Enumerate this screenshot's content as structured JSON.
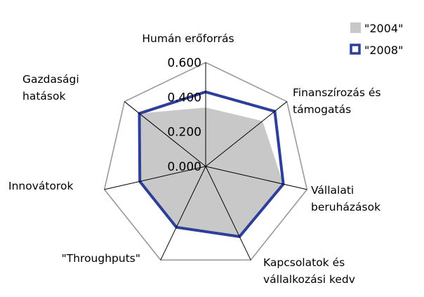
{
  "chart_data": {
    "type": "radar",
    "categories": [
      [
        "Humán erőforrás"
      ],
      [
        "Finanszírozás és",
        "támogatás"
      ],
      [
        "Vállalati",
        "beruházások"
      ],
      [
        "Kapcsolatok és",
        "vállalkozási kedv"
      ],
      [
        "\"Throughputs\""
      ],
      [
        "Innovátorok"
      ],
      [
        "Gazdasági",
        "hatások"
      ]
    ],
    "series": [
      {
        "name": "\"2004\"",
        "values": [
          0.34,
          0.42,
          0.46,
          0.45,
          0.39,
          0.39,
          0.49
        ],
        "color": "#c8c8c8",
        "style": "filled"
      },
      {
        "name": "\"2008\"",
        "values": [
          0.43,
          0.51,
          0.46,
          0.45,
          0.39,
          0.39,
          0.49
        ],
        "color": "#2e3f99",
        "style": "line"
      }
    ],
    "r_ticks": [
      "0.000",
      "0.200",
      "0.400",
      "0.600"
    ],
    "r_range": [
      0,
      0.6
    ],
    "grid": "outer-ring-only",
    "legend_position": "top-right"
  }
}
